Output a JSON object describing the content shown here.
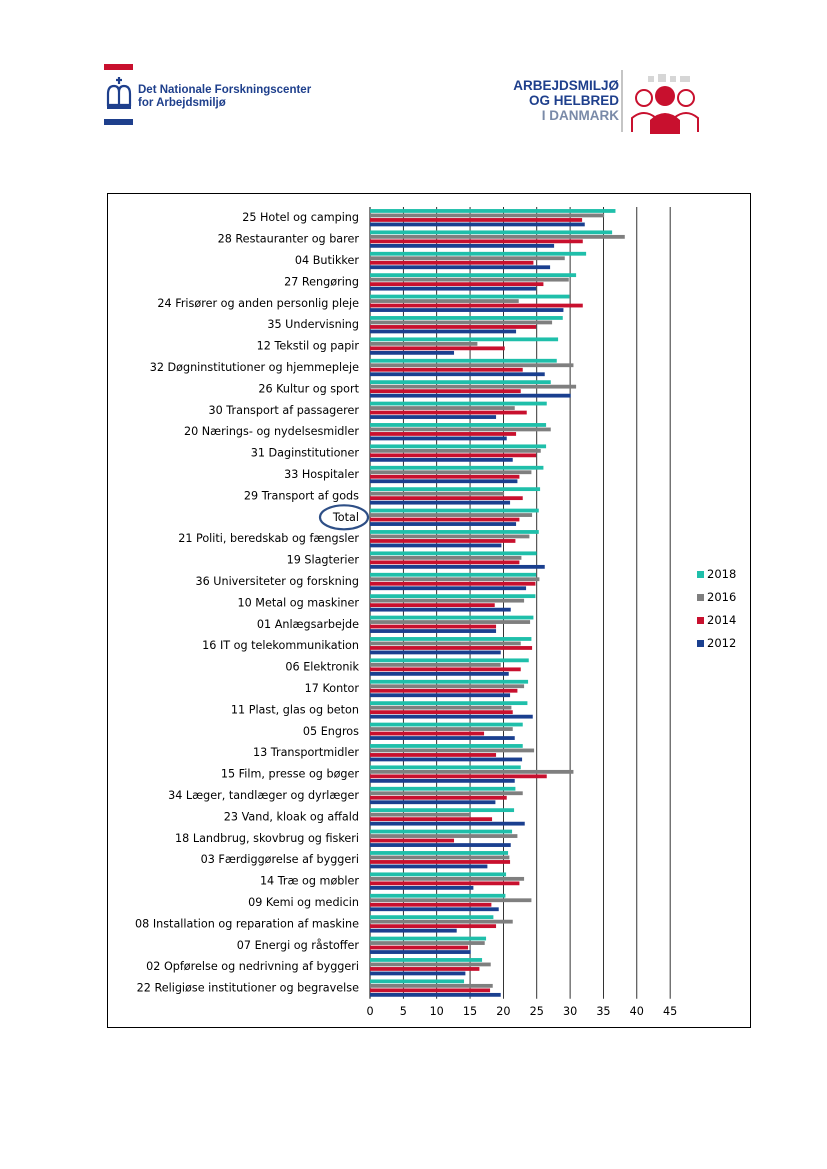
{
  "header": {
    "left_logo_text": "Det Nationale Forskningscenter for Arbejdsmiljø",
    "left_logo_line1": "Det Nationale Forskningscenter",
    "left_logo_line2": "for Arbejdsmiljø",
    "right_logo_line1": "ARBEJDSMILJØ",
    "right_logo_line2": "OG HELBRED",
    "right_logo_line3": "I DANMARK"
  },
  "colors": {
    "2018": "#1fbfaa",
    "2016": "#7f7f7f",
    "2014": "#c8102e",
    "2012": "#1a3f8f",
    "brand_blue": "#1e3f8c",
    "brand_red": "#c8102e",
    "highlight_circle": "#2e4f86"
  },
  "chart_data": {
    "type": "bar",
    "orientation": "horizontal",
    "title": "",
    "xlabel": "",
    "ylabel": "",
    "xlim": [
      0,
      45
    ],
    "xticks": [
      0,
      5,
      10,
      15,
      20,
      25,
      30,
      35,
      40,
      45
    ],
    "grid": true,
    "legend_position": "right",
    "highlighted_category": "Total",
    "categories": [
      "25 Hotel og camping",
      "28 Restauranter og barer",
      "04 Butikker",
      "27 Rengøring",
      "24 Frisører og anden personlig pleje",
      "35 Undervisning",
      "12 Tekstil og papir",
      "32 Døgninstitutioner og hjemmepleje",
      "26 Kultur og sport",
      "30 Transport af passagerer",
      "20 Nærings- og nydelsesmidler",
      "31 Daginstitutioner",
      "33 Hospitaler",
      "29 Transport af gods",
      "Total",
      "21 Politi, beredskab og fængsler",
      "19 Slagterier",
      "36 Universiteter og forskning",
      "10 Metal og maskiner",
      "01 Anlægsarbejde",
      "16 IT og telekommunikation",
      "06 Elektronik",
      "17 Kontor",
      "11 Plast, glas og beton",
      "05 Engros",
      "13 Transportmidler",
      "15 Film, presse og bøger",
      "34 Læger, tandlæger og dyrlæger",
      "23 Vand, kloak og affald",
      "18 Landbrug, skovbrug og fiskeri",
      "03 Færdiggørelse af byggeri",
      "14 Træ og møbler",
      "09 Kemi og medicin",
      "08 Installation og reparation af maskine",
      "07 Energi og råstoffer",
      "02 Opførelse og nedrivning af byggeri",
      "22 Religiøse institutioner og begravelse"
    ],
    "series": [
      {
        "name": "2018",
        "color_key": "2018",
        "values": [
          36.8,
          36.3,
          32.4,
          30.9,
          29.9,
          28.9,
          28.2,
          28.0,
          27.1,
          26.5,
          26.4,
          26.4,
          26.0,
          25.5,
          25.3,
          25.3,
          25.0,
          24.9,
          24.8,
          24.5,
          24.2,
          23.8,
          23.7,
          23.6,
          22.9,
          22.9,
          22.6,
          21.8,
          21.6,
          21.3,
          20.7,
          20.4,
          20.3,
          18.5,
          17.4,
          16.8,
          14.1
        ]
      },
      {
        "name": "2016",
        "color_key": "2016",
        "values": [
          35.1,
          38.2,
          29.2,
          29.8,
          22.3,
          27.3,
          16.1,
          30.5,
          30.9,
          21.7,
          27.1,
          25.6,
          24.2,
          20.1,
          24.3,
          23.9,
          22.7,
          25.4,
          23.1,
          24.0,
          22.6,
          19.6,
          23.1,
          21.2,
          21.4,
          24.6,
          30.5,
          22.9,
          15.0,
          22.1,
          20.9,
          23.1,
          24.2,
          21.4,
          17.2,
          18.1,
          18.4
        ]
      },
      {
        "name": "2014",
        "color_key": "2014",
        "values": [
          31.8,
          31.9,
          24.5,
          26.0,
          31.9,
          24.9,
          20.2,
          22.9,
          22.6,
          23.5,
          21.9,
          24.9,
          22.4,
          22.9,
          22.4,
          21.8,
          22.4,
          24.8,
          18.7,
          18.9,
          24.3,
          22.6,
          22.1,
          21.4,
          17.1,
          18.9,
          26.5,
          20.5,
          18.3,
          12.6,
          21.0,
          22.4,
          18.2,
          18.9,
          14.7,
          16.4,
          18.0
        ]
      },
      {
        "name": "2012",
        "color_key": "2012",
        "values": [
          32.2,
          27.6,
          27.0,
          24.9,
          29.0,
          21.9,
          12.6,
          26.2,
          30.1,
          18.9,
          20.5,
          21.4,
          22.1,
          21.0,
          21.9,
          19.7,
          26.2,
          23.4,
          21.1,
          18.9,
          19.6,
          20.8,
          21.0,
          24.4,
          21.7,
          22.8,
          21.7,
          18.8,
          23.2,
          21.1,
          17.6,
          15.5,
          19.3,
          13.0,
          15.1,
          14.3,
          19.6
        ]
      }
    ]
  }
}
